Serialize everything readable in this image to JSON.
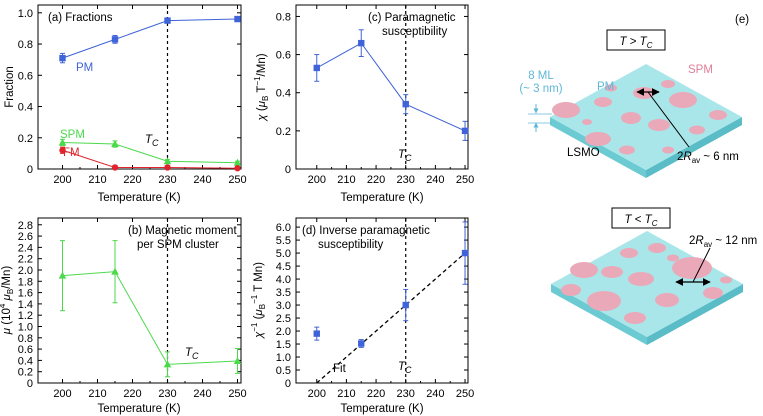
{
  "colors": {
    "pm": "#3f63d8",
    "spm": "#4cd94c",
    "fm": "#e0242e",
    "slab_top": "#a8e6ea",
    "slab_side": "#6ccad2",
    "cluster": "#eaa9b9",
    "text_blue": "#5fb6d8",
    "text_pink": "#e07f98"
  },
  "chart_data": [
    {
      "type": "line",
      "panel_label": "(a) Fractions",
      "xlabel": "Temperature (K)",
      "ylabel": "Fraction",
      "x_ticks": [
        "200",
        "210",
        "220",
        "230",
        "240",
        "250"
      ],
      "y_ticks": [
        "0",
        "0.2",
        "0.4",
        "0.6",
        "0.8",
        "1.0"
      ],
      "xlim": [
        193,
        251
      ],
      "ylim": [
        0,
        1.05
      ],
      "tc_x": 230,
      "tc_label": "T_C",
      "series": [
        {
          "name": "PM",
          "color": "#3f63d8",
          "marker": "square",
          "x": [
            200,
            215,
            230,
            250
          ],
          "y": [
            0.71,
            0.83,
            0.95,
            0.96
          ],
          "err": [
            0.03,
            0.025,
            0.015,
            0.015
          ]
        },
        {
          "name": "SPM",
          "color": "#4cd94c",
          "marker": "triangle",
          "x": [
            200,
            215,
            230,
            250
          ],
          "y": [
            0.17,
            0.16,
            0.05,
            0.04
          ],
          "err": [
            0.02,
            0.02,
            0.01,
            0.01
          ]
        },
        {
          "name": "FM",
          "color": "#e0242e",
          "marker": "circle",
          "x": [
            200,
            215,
            230,
            250
          ],
          "y": [
            0.12,
            0.01,
            0.01,
            0.005
          ],
          "err": [
            0.02,
            0.01,
            0.005,
            0.005
          ]
        }
      ]
    },
    {
      "type": "line",
      "panel_label_lines": [
        "(c) Paramagnetic",
        "susceptibility"
      ],
      "xlabel": "Temperature (K)",
      "ylabel": "χ (μB T⁻¹/Mn)",
      "x_ticks": [
        "200",
        "210",
        "220",
        "230",
        "240",
        "250"
      ],
      "y_ticks": [
        "0",
        "0.2",
        "0.4",
        "0.6",
        "0.8"
      ],
      "xlim": [
        193,
        251
      ],
      "ylim": [
        0,
        0.86
      ],
      "tc_x": 230,
      "tc_label": "T_C",
      "series": [
        {
          "name": "χ",
          "color": "#3f63d8",
          "marker": "square",
          "x": [
            200,
            215,
            230,
            250
          ],
          "y": [
            0.53,
            0.66,
            0.34,
            0.2
          ],
          "err": [
            0.07,
            0.07,
            0.05,
            0.05
          ]
        }
      ]
    },
    {
      "type": "line",
      "panel_label_lines": [
        "(b) Magnetic moment",
        "per SPM cluster"
      ],
      "xlabel": "Temperature (K)",
      "ylabel": "μ (10⁴ μB/Mn)",
      "x_ticks": [
        "200",
        "210",
        "220",
        "230",
        "240",
        "250"
      ],
      "y_ticks": [
        "0",
        "0.2",
        "0.4",
        "0.6",
        "0.8",
        "1.0",
        "1.2",
        "1.4",
        "1.6",
        "1.8",
        "2.0",
        "2.2",
        "2.4",
        "2.6",
        "2.8"
      ],
      "xlim": [
        193,
        251
      ],
      "ylim": [
        0,
        2.92
      ],
      "tc_x": 230,
      "tc_label": "T_C",
      "series": [
        {
          "name": "μ",
          "color": "#4cd94c",
          "marker": "triangle",
          "x": [
            200,
            215,
            230,
            250
          ],
          "y": [
            1.9,
            1.97,
            0.33,
            0.39
          ],
          "err": [
            0.62,
            0.55,
            0.22,
            0.22
          ]
        }
      ]
    },
    {
      "type": "scatter",
      "panel_label_lines": [
        "(d) Inverse paramagnetic",
        "susceptibility"
      ],
      "xlabel": "Temperature (K)",
      "ylabel": "χ⁻¹ (μB⁻¹ T Mn)",
      "x_ticks": [
        "200",
        "210",
        "220",
        "230",
        "240",
        "250"
      ],
      "y_ticks": [
        "0",
        "0.5",
        "1.0",
        "1.5",
        "2.0",
        "2.5",
        "3.0",
        "3.5",
        "4.0",
        "4.5",
        "5.0",
        "5.5",
        "6.0"
      ],
      "xlim": [
        193,
        251
      ],
      "ylim": [
        0,
        6.35
      ],
      "tc_x": 230,
      "tc_label": "T_C",
      "fit_label": "Fit",
      "fit": {
        "x": [
          200,
          250
        ],
        "y": [
          0,
          5.0
        ]
      },
      "series": [
        {
          "name": "1/χ",
          "color": "#3f63d8",
          "marker": "square",
          "x": [
            200,
            215,
            230,
            250
          ],
          "y": [
            1.9,
            1.52,
            3.0,
            5.0
          ],
          "err": [
            0.25,
            0.15,
            0.6,
            1.2
          ]
        }
      ]
    }
  ],
  "schematic": {
    "panel_label": "(e)",
    "top": {
      "condition": "T > TC",
      "pm_label": "PM",
      "spm_label": "SPM",
      "thickness_label": "8 ML",
      "thickness_sub": "(~ 3 nm)",
      "substrate_label": "LSMO",
      "size_label": "2Rav ~ 6 nm"
    },
    "bottom": {
      "condition": "T < TC",
      "size_label": "2Rav ~ 12 nm"
    }
  }
}
